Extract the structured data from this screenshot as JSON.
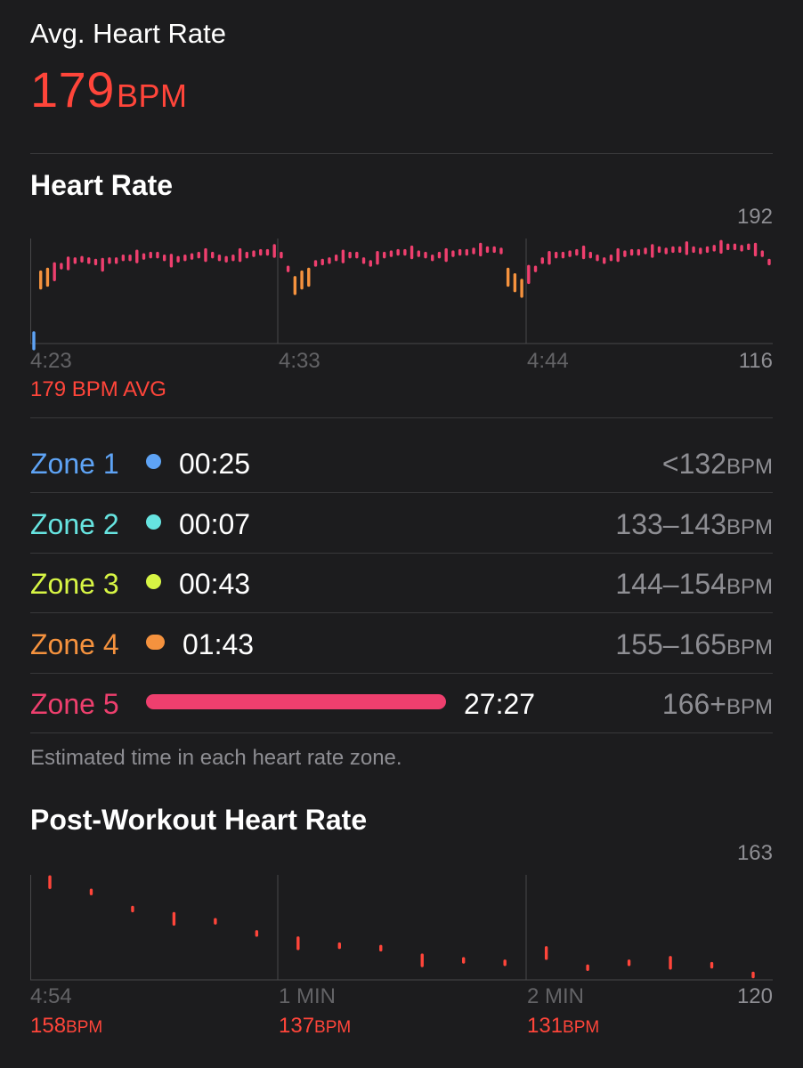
{
  "summary": {
    "title": "Avg. Heart Rate",
    "value": "179",
    "unit": "BPM"
  },
  "heart_rate_chart": {
    "title": "Heart Rate",
    "y_max_label": "192",
    "y_min_label": "116",
    "x_labels": [
      "4:23",
      "4:33",
      "4:44"
    ],
    "avg_label": "179 BPM AVG"
  },
  "zones": [
    {
      "name": "Zone 1",
      "time": "00:25",
      "range": "<132",
      "unit": "BPM",
      "color": "#5ea3f5",
      "fraction": 0.015
    },
    {
      "name": "Zone 2",
      "time": "00:07",
      "range": "133–143",
      "unit": "BPM",
      "color": "#66e3e0",
      "fraction": 0.004
    },
    {
      "name": "Zone 3",
      "time": "00:43",
      "range": "144–154",
      "unit": "BPM",
      "color": "#d7f544",
      "fraction": 0.026
    },
    {
      "name": "Zone 4",
      "time": "01:43",
      "range": "155–165",
      "unit": "BPM",
      "color": "#f5923e",
      "fraction": 0.062
    },
    {
      "name": "Zone 5",
      "time": "27:27",
      "range": "166+",
      "unit": "BPM",
      "color": "#ee3f6e",
      "fraction": 1.0
    }
  ],
  "zones_note": "Estimated time in each heart rate zone.",
  "post_workout": {
    "title": "Post-Workout Heart Rate",
    "y_max_label": "163",
    "y_min_label": "120",
    "x_labels": [
      "4:54",
      "1 MIN",
      "2 MIN"
    ],
    "bpm_labels": [
      {
        "value": "158",
        "unit": "BPM"
      },
      {
        "value": "137",
        "unit": "BPM"
      },
      {
        "value": "131",
        "unit": "BPM"
      }
    ]
  },
  "chart_data": [
    {
      "type": "scatter",
      "title": "Heart Rate",
      "xlabel": "",
      "ylabel": "",
      "ylim": [
        116,
        192
      ],
      "x_ticks": [
        "4:23",
        "4:33",
        "4:44"
      ],
      "grid": "vertical",
      "series": [
        {
          "values": [
            118,
            162,
            164,
            168,
            172,
            174,
            176,
            177,
            176,
            175,
            173,
            176,
            176,
            178,
            178,
            179,
            179,
            180,
            180,
            178,
            176,
            177,
            178,
            179,
            180,
            180,
            180,
            178,
            177,
            178,
            180,
            180,
            181,
            182,
            182,
            183,
            180,
            170,
            158,
            162,
            164,
            174,
            175,
            176,
            178,
            179,
            180,
            180,
            176,
            174,
            178,
            180,
            181,
            182,
            182,
            182,
            181,
            180,
            178,
            180,
            180,
            181,
            182,
            182,
            183,
            184,
            184,
            184,
            183,
            164,
            160,
            156,
            166,
            170,
            176,
            178,
            180,
            180,
            181,
            182,
            182,
            180,
            178,
            176,
            178,
            180,
            181,
            182,
            182,
            183,
            183,
            184,
            183,
            184,
            184,
            185,
            184,
            183,
            184,
            185,
            186,
            186,
            186,
            185,
            186,
            184,
            181,
            175
          ]
        }
      ]
    },
    {
      "type": "scatter",
      "title": "Post-Workout Heart Rate",
      "xlabel": "",
      "ylabel": "",
      "ylim": [
        120,
        163
      ],
      "x_ticks": [
        "4:54",
        "1 MIN",
        "2 MIN"
      ],
      "grid": "vertical",
      "series": [
        {
          "values": [
            160,
            156,
            149,
            145,
            144,
            139,
            135,
            134,
            133,
            128,
            128,
            127,
            131,
            125,
            127,
            127,
            126,
            122
          ]
        }
      ]
    }
  ]
}
